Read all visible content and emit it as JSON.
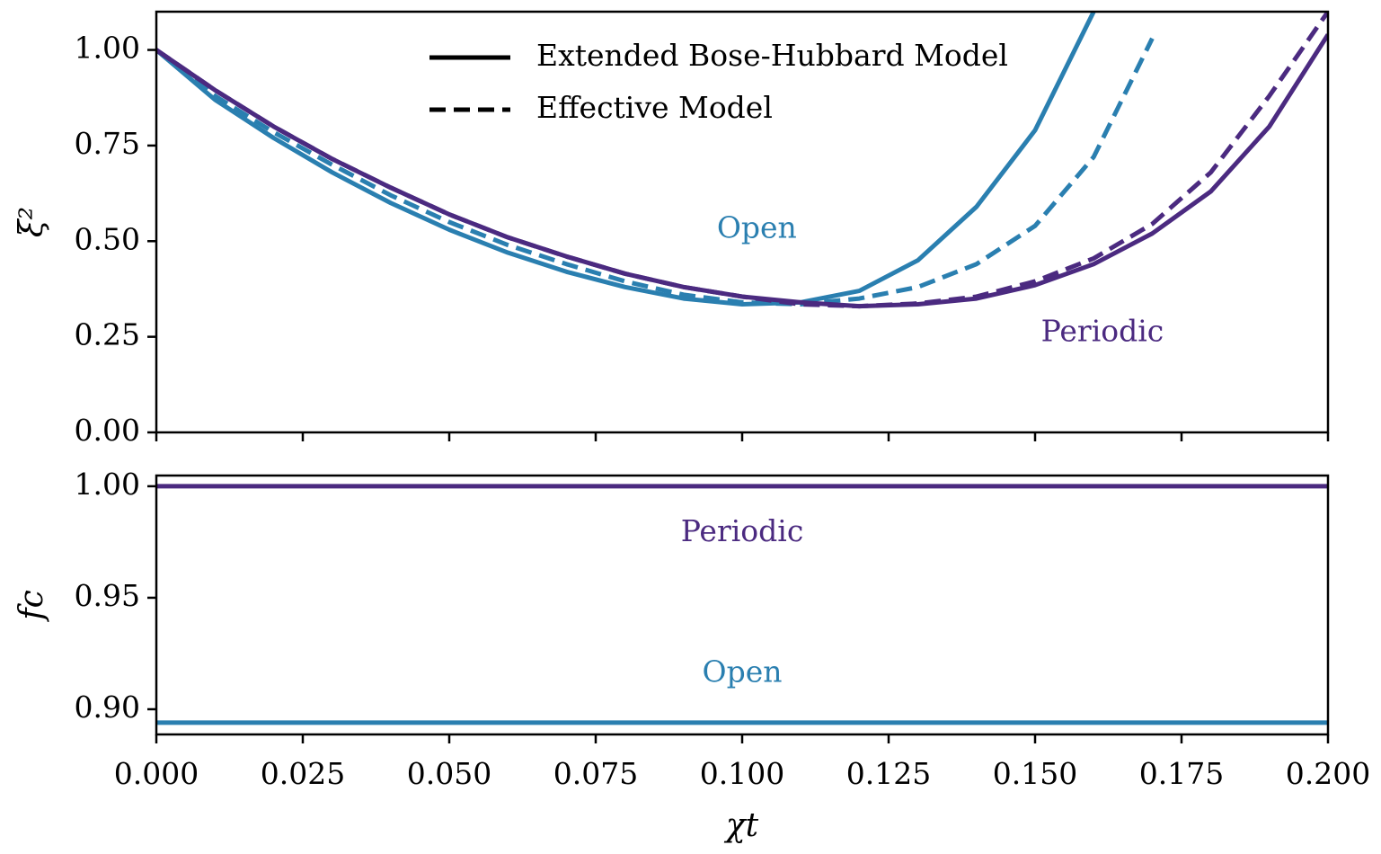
{
  "chart_data": [
    {
      "type": "line",
      "y_label": "ξ²",
      "x": [
        0,
        0.01,
        0.02,
        0.03,
        0.04,
        0.05,
        0.06,
        0.07,
        0.08,
        0.09,
        0.1,
        0.11,
        0.12,
        0.13,
        0.14,
        0.15,
        0.16,
        0.17,
        0.18,
        0.19,
        0.2
      ],
      "xlim": [
        0,
        0.2
      ],
      "ylim": [
        0,
        1.1
      ],
      "yticks": [
        {
          "value": 0,
          "label": "0.00"
        },
        {
          "value": 0.25,
          "label": "0.25"
        },
        {
          "value": 0.5,
          "label": "0.50"
        },
        {
          "value": 0.75,
          "label": "0.75"
        },
        {
          "value": 1,
          "label": "1.00"
        }
      ],
      "legend_color": "#000000",
      "series": [
        {
          "name": "Extended Bose-Hubbard Model",
          "color": "#2a7fb0",
          "dashed": false,
          "values": [
            1.0,
            0.87,
            0.77,
            0.68,
            0.6,
            0.53,
            0.47,
            0.42,
            0.38,
            0.35,
            0.335,
            0.34,
            0.37,
            0.45,
            0.59,
            0.79,
            1.1,
            null,
            null,
            null,
            null
          ]
        },
        {
          "name": "Effective Model",
          "color": "#2a7fb0",
          "dashed": true,
          "values": [
            1.0,
            0.88,
            0.785,
            0.7,
            0.62,
            0.55,
            0.49,
            0.44,
            0.395,
            0.36,
            0.34,
            0.335,
            0.35,
            0.38,
            0.44,
            0.54,
            0.72,
            1.03,
            null,
            null,
            null
          ]
        },
        {
          "name": "Extended Bose-Hubbard Model",
          "color": "#4b2a80",
          "dashed": false,
          "values": [
            1.0,
            0.895,
            0.8,
            0.715,
            0.64,
            0.57,
            0.51,
            0.46,
            0.415,
            0.38,
            0.355,
            0.34,
            0.33,
            0.335,
            0.35,
            0.385,
            0.44,
            0.52,
            0.63,
            0.8,
            1.04
          ]
        },
        {
          "name": "Effective Model",
          "color": "#4b2a80",
          "dashed": true,
          "values": [
            1.0,
            0.895,
            0.8,
            0.715,
            0.64,
            0.57,
            0.51,
            0.46,
            0.415,
            0.38,
            0.355,
            0.335,
            0.33,
            0.337,
            0.355,
            0.395,
            0.455,
            0.545,
            0.68,
            0.88,
            1.1
          ]
        }
      ],
      "annotations": [
        {
          "text": "Open",
          "x": 0.1025,
          "y": 0.53,
          "color": "#2a7fb0"
        },
        {
          "text": "Periodic",
          "x": 0.1615,
          "y": 0.26,
          "color": "#4b2a80"
        }
      ]
    },
    {
      "type": "line",
      "x_label": "χt",
      "y_label": "fc",
      "x": [
        0,
        0.2
      ],
      "xlim": [
        0,
        0.2
      ],
      "ylim": [
        0.8887,
        1.0048
      ],
      "xticks": [
        {
          "value": 0,
          "label": "0.000"
        },
        {
          "value": 0.025,
          "label": "0.025"
        },
        {
          "value": 0.05,
          "label": "0.050"
        },
        {
          "value": 0.075,
          "label": "0.075"
        },
        {
          "value": 0.1,
          "label": "0.100"
        },
        {
          "value": 0.125,
          "label": "0.125"
        },
        {
          "value": 0.15,
          "label": "0.150"
        },
        {
          "value": 0.175,
          "label": "0.175"
        },
        {
          "value": 0.2,
          "label": "0.200"
        }
      ],
      "yticks": [
        {
          "value": 0.9,
          "label": "0.90"
        },
        {
          "value": 0.95,
          "label": "0.95"
        },
        {
          "value": 1,
          "label": "1.00"
        }
      ],
      "series": [
        {
          "name": "Extended Bose-Hubbard Model",
          "color": "#4b2a80",
          "dashed": false,
          "values": [
            1.0,
            1.0
          ]
        },
        {
          "name": "Extended Bose-Hubbard Model",
          "color": "#2a7fb0",
          "dashed": false,
          "values": [
            0.894,
            0.894
          ]
        }
      ],
      "annotations": [
        {
          "text": "Periodic",
          "x": 0.1,
          "y": 0.979,
          "color": "#4b2a80"
        },
        {
          "text": "Open",
          "x": 0.1,
          "y": 0.916,
          "color": "#2a7fb0"
        }
      ]
    }
  ]
}
